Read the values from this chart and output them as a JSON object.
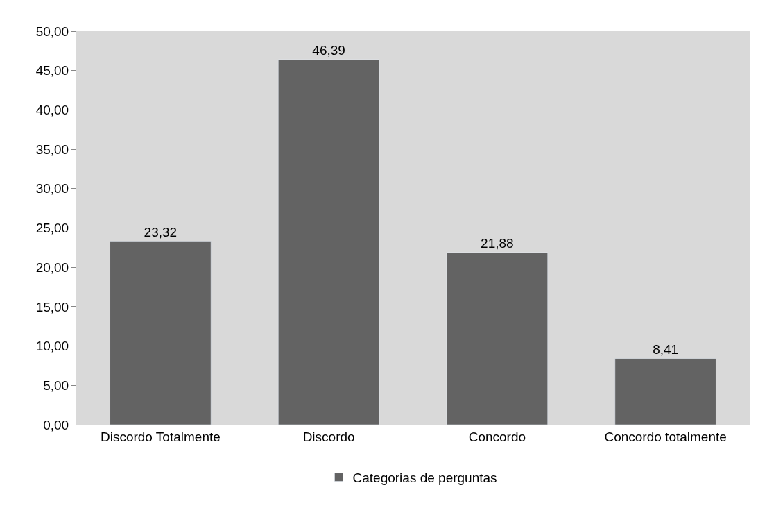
{
  "chart_data": {
    "type": "bar",
    "categories": [
      "Discordo Totalmente",
      "Discordo",
      "Concordo",
      "Concordo totalmente"
    ],
    "series": [
      {
        "name": "Categorias de perguntas",
        "color": "#636363",
        "values": [
          23.32,
          46.39,
          21.88,
          8.41
        ],
        "value_labels": [
          "23,32",
          "46,39",
          "21,88",
          "8,41"
        ]
      }
    ],
    "ylim": [
      0,
      50
    ],
    "yticks": [
      {
        "value": 0,
        "label": "0,00"
      },
      {
        "value": 5,
        "label": "5,00"
      },
      {
        "value": 10,
        "label": "10,00"
      },
      {
        "value": 15,
        "label": "15,00"
      },
      {
        "value": 20,
        "label": "20,00"
      },
      {
        "value": 25,
        "label": "25,00"
      },
      {
        "value": 30,
        "label": "30,00"
      },
      {
        "value": 35,
        "label": "35,00"
      },
      {
        "value": 40,
        "label": "40,00"
      },
      {
        "value": 45,
        "label": "45,00"
      },
      {
        "value": 50,
        "label": "50,00"
      }
    ],
    "grid": false,
    "legend": "bottom"
  }
}
